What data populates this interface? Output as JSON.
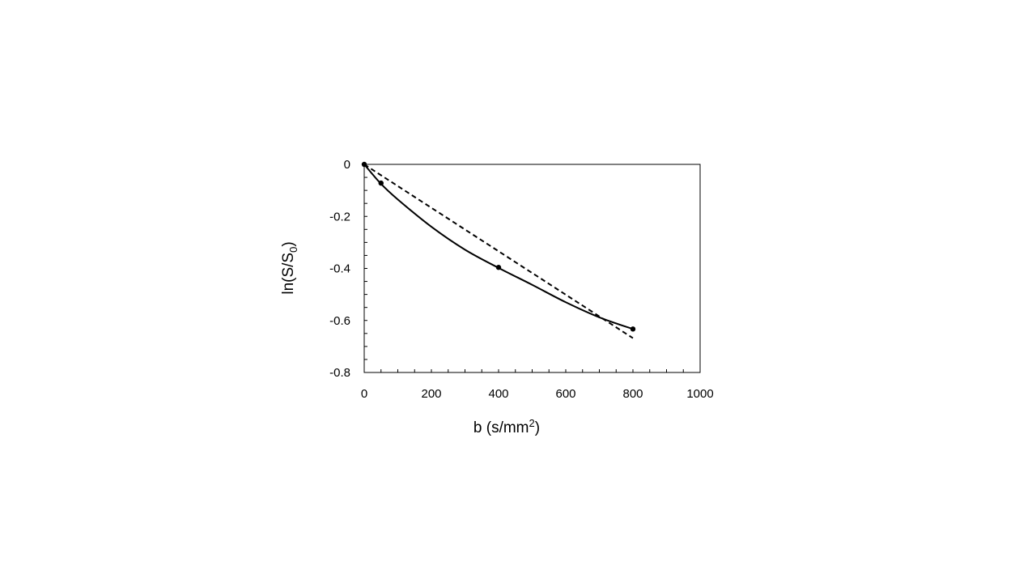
{
  "chart_data": {
    "type": "scatter",
    "xlabel": {
      "main": "b (s/mm",
      "sup": "2",
      "tail": ")"
    },
    "ylabel": {
      "main": "ln(S/S",
      "sub": "0",
      "tail": ")"
    },
    "xlim": [
      0,
      1000
    ],
    "ylim": [
      -0.8,
      0
    ],
    "x_ticks": [
      0,
      200,
      400,
      600,
      800,
      1000
    ],
    "y_ticks": [
      0,
      -0.2,
      -0.4,
      -0.6,
      -0.8
    ],
    "x_tick_labels": [
      "0",
      "200",
      "400",
      "600",
      "800",
      "1000"
    ],
    "y_tick_labels": [
      "0",
      "-0.2",
      "-0.4",
      "-0.6",
      "-0.8"
    ],
    "x_minor_step": 50,
    "y_minor_step": 0.05,
    "grid": false,
    "legend": "none",
    "series": [
      {
        "kind": "points",
        "color": "#000000",
        "x": [
          0,
          50,
          400,
          800
        ],
        "y": [
          0,
          -0.072,
          -0.396,
          -0.633
        ]
      },
      {
        "kind": "curve",
        "style": "solid",
        "color": "#000000",
        "x": [
          0,
          50,
          100,
          200,
          300,
          400,
          500,
          600,
          700,
          800
        ],
        "y": [
          0,
          -0.075,
          -0.135,
          -0.24,
          -0.328,
          -0.398,
          -0.463,
          -0.53,
          -0.588,
          -0.633
        ]
      },
      {
        "kind": "line",
        "style": "dashed",
        "color": "#000000",
        "x": [
          0,
          800
        ],
        "y": [
          0,
          -0.668
        ]
      }
    ]
  }
}
